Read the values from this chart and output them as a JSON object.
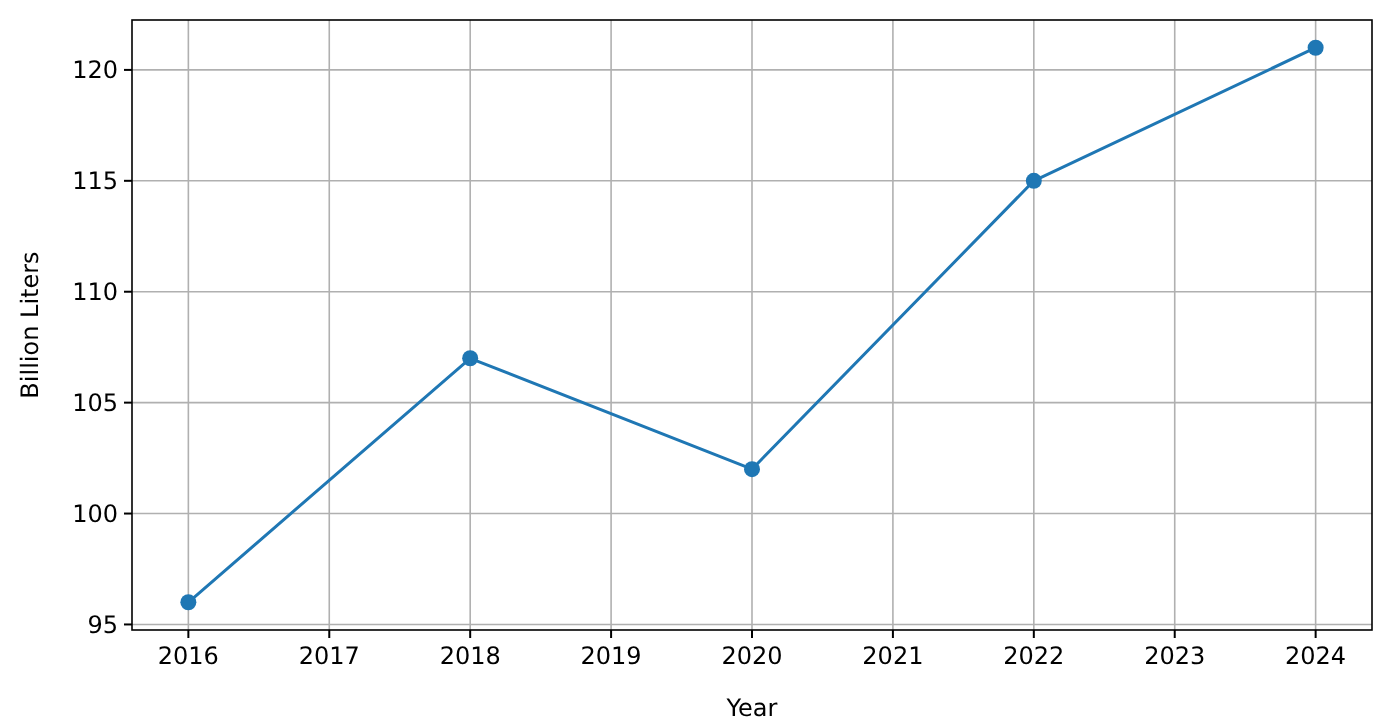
{
  "chart_data": {
    "type": "line",
    "xlabel": "Year",
    "ylabel": "Billion Liters",
    "x": [
      2016,
      2018,
      2020,
      2022,
      2024
    ],
    "series": [
      {
        "color": "#1f77b4",
        "values": [
          96,
          107,
          102,
          115,
          121
        ]
      }
    ],
    "xlim": [
      2015.6,
      2024.4
    ],
    "xticks": [
      2016,
      2017,
      2018,
      2019,
      2020,
      2021,
      2022,
      2023,
      2024
    ],
    "ylim": [
      94.75,
      122.25
    ],
    "yticks": [
      95,
      100,
      105,
      110,
      115,
      120
    ],
    "grid": true,
    "marker": "circle",
    "line_style": "solid"
  }
}
